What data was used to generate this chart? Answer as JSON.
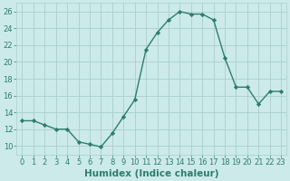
{
  "x": [
    0,
    1,
    2,
    3,
    4,
    5,
    6,
    7,
    8,
    9,
    10,
    11,
    12,
    13,
    14,
    15,
    16,
    17,
    18,
    19,
    20,
    21,
    22,
    23
  ],
  "y": [
    13,
    13,
    12.5,
    12,
    12,
    10.5,
    10.2,
    9.9,
    11.5,
    13.5,
    15.5,
    21.5,
    23.5,
    25,
    26,
    25.7,
    25.7,
    25,
    20.5,
    17,
    17,
    15,
    16.5,
    16.5
  ],
  "line_color": "#2e7d6e",
  "marker": "D",
  "marker_size": 2.2,
  "bg_color": "#cceaea",
  "grid_color": "#aacece",
  "xlabel": "Humidex (Indice chaleur)",
  "ylim": [
    9,
    27
  ],
  "xlim": [
    -0.5,
    23.5
  ],
  "yticks": [
    10,
    12,
    14,
    16,
    18,
    20,
    22,
    24,
    26
  ],
  "xticks": [
    0,
    1,
    2,
    3,
    4,
    5,
    6,
    7,
    8,
    9,
    10,
    11,
    12,
    13,
    14,
    15,
    16,
    17,
    18,
    19,
    20,
    21,
    22,
    23
  ],
  "xtick_labels": [
    "0",
    "1",
    "2",
    "3",
    "4",
    "5",
    "6",
    "7",
    "8",
    "9",
    "10",
    "11",
    "12",
    "13",
    "14",
    "15",
    "16",
    "17",
    "18",
    "19",
    "20",
    "21",
    "22",
    "23"
  ],
  "tick_color": "#2e7d6e",
  "tick_fontsize": 6,
  "xlabel_fontsize": 7.5
}
